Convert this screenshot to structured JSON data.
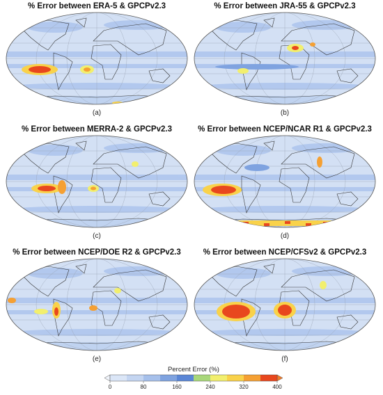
{
  "panels": [
    {
      "title": "% Error between ERA-5 & GPCPv2.3",
      "label": "(a)"
    },
    {
      "title": "% Error between JRA-55 & GPCPv2.3",
      "label": "(b)"
    },
    {
      "title": "% Error between MERRA-2 & GPCPv2.3",
      "label": "(c)"
    },
    {
      "title": "% Error between NCEP/NCAR R1 & GPCPv2.3",
      "label": "(d)"
    },
    {
      "title": "% Error between NCEP/DOE R2 & GPCPv2.3",
      "label": "(e)"
    },
    {
      "title": "% Error between NCEP/CFSv2 & GPCPv2.3",
      "label": "(f)"
    }
  ],
  "colorbar": {
    "label": "Percent Error (%)",
    "lim": [
      0,
      400
    ],
    "ticks": [
      0,
      80,
      160,
      240,
      320,
      400
    ],
    "colors": [
      "#dbe6f7",
      "#c4d5f1",
      "#a6c0eb",
      "#7fa3e0",
      "#5a86d6",
      "#a8d77a",
      "#f2ef6e",
      "#f9d24a",
      "#f5a033",
      "#e8471e"
    ]
  }
}
